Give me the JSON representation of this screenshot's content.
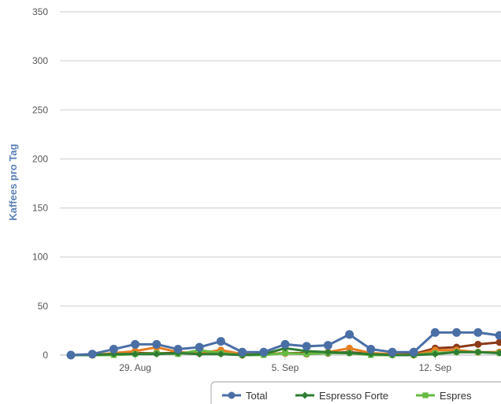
{
  "chart_data": {
    "type": "line",
    "ylabel": "Kaffees pro Tag",
    "ylim": [
      0,
      350
    ],
    "yticks": [
      0,
      50,
      100,
      150,
      200,
      250,
      300,
      350
    ],
    "x": [
      "2022-08-26",
      "2022-08-27",
      "2022-08-28",
      "2022-08-29",
      "2022-08-30",
      "2022-08-31",
      "2022-09-01",
      "2022-09-02",
      "2022-09-03",
      "2022-09-04",
      "2022-09-05",
      "2022-09-06",
      "2022-09-07",
      "2022-09-08",
      "2022-09-09",
      "2022-09-10",
      "2022-09-11",
      "2022-09-12",
      "2022-09-13",
      "2022-09-14",
      "2022-09-15"
    ],
    "xtick_labels": [
      {
        "date": "2022-08-29",
        "label": "29. Aug"
      },
      {
        "date": "2022-09-05",
        "label": "5. Sep"
      },
      {
        "date": "2022-09-12",
        "label": "12. Sep"
      }
    ],
    "grid": true,
    "legend_placement": "bottom",
    "series": [
      {
        "name": "Total",
        "color": "#4a6fa5",
        "marker": "circle",
        "values": [
          0,
          1,
          6,
          11,
          11,
          6,
          8,
          14,
          3,
          3,
          11,
          9,
          10,
          21,
          6,
          3,
          3,
          23,
          23,
          23,
          20
        ]
      },
      {
        "name": "Espresso Forte",
        "color": "#2e7d32",
        "marker": "diamond",
        "values": [
          0,
          0,
          1,
          1,
          1,
          2,
          1,
          1,
          0,
          1,
          7,
          4,
          3,
          2,
          1,
          0,
          0,
          1,
          3,
          3,
          2
        ]
      },
      {
        "name": "Espres",
        "color": "#66bb44",
        "marker": "square",
        "values": [
          0,
          0,
          0,
          1,
          2,
          1,
          5,
          2,
          0,
          0,
          2,
          1,
          2,
          2,
          0,
          0,
          0,
          2,
          3,
          3,
          2
        ]
      },
      {
        "name": "",
        "color": "#e67e22",
        "marker": "circle",
        "values": [
          0,
          0,
          2,
          4,
          8,
          3,
          2,
          5,
          1,
          1,
          2,
          1,
          3,
          7,
          2,
          1,
          0,
          5,
          5,
          3,
          3
        ]
      },
      {
        "name": "",
        "color": "#8b3a1a",
        "marker": "circle",
        "values": [
          0,
          0,
          1,
          2,
          2,
          2,
          2,
          2,
          0,
          1,
          2,
          2,
          2,
          3,
          1,
          1,
          1,
          7,
          8,
          11,
          13
        ]
      }
    ]
  }
}
